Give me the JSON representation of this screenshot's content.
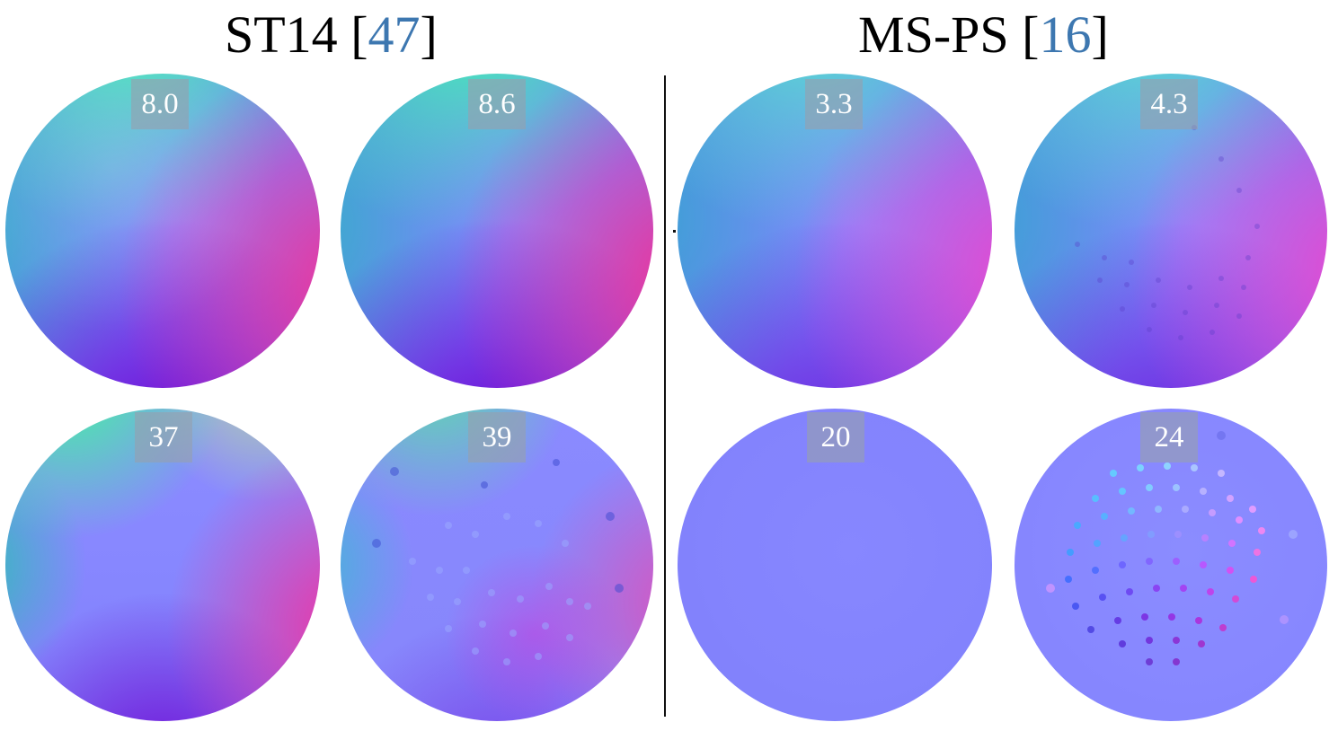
{
  "columns": [
    {
      "method": "ST14",
      "open": " [",
      "ref": "47",
      "close": "]"
    },
    {
      "method": "MS-PS",
      "open": " [",
      "ref": "16",
      "close": "]"
    }
  ],
  "scores": {
    "top_left_1": "8.0",
    "top_left_2": "8.6",
    "top_right_1": "3.3",
    "top_right_2": "4.3",
    "bottom_left_1": "37",
    "bottom_left_2": "39",
    "bottom_right_1": "20",
    "bottom_right_2": "24"
  },
  "colors": {
    "citation": "#3d77b0",
    "badge": "#96a0af",
    "flat_normal": "#8080ff"
  }
}
